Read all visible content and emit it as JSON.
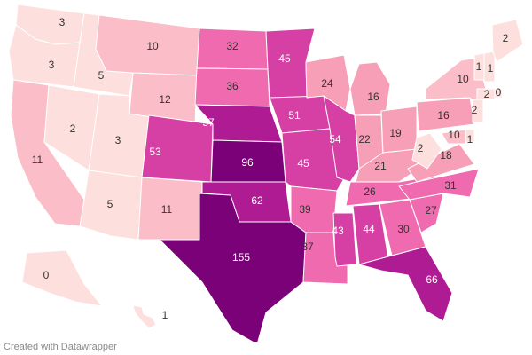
{
  "credit": "Created with Datawrapper",
  "color_scale": [
    "#fde0dd",
    "#fbbdc7",
    "#f79fb7",
    "#ef6aae",
    "#d63fa3",
    "#ae1b93",
    "#7a0177"
  ],
  "chart_data": {
    "type": "choropleth",
    "region": "United States",
    "values": {
      "WA": 3,
      "OR": 3,
      "CA": 11,
      "ID": 5,
      "NV": 2,
      "UT": 3,
      "AZ": 5,
      "MT": 10,
      "WY": 12,
      "CO": 53,
      "NM": 11,
      "ND": 32,
      "SD": 36,
      "NE": 57,
      "KS": 96,
      "OK": 62,
      "TX": 155,
      "MN": 45,
      "IA": 51,
      "MO": 45,
      "AR": 39,
      "LA": 37,
      "WI": 24,
      "IL": 54,
      "MI": 16,
      "IN": 22,
      "OH": 19,
      "KY": 21,
      "TN": 26,
      "MS": 43,
      "AL": 44,
      "GA": 30,
      "FL": 66,
      "SC": 27,
      "NC": 31,
      "VA": 18,
      "WV": 2,
      "PA": 16,
      "NY": 10,
      "MD": 10,
      "DE": 1,
      "NJ": 2,
      "CT": 2,
      "RI": 0,
      "VT": 1,
      "NH": 1,
      "ME": 2,
      "AK": 0,
      "HI": 1
    }
  }
}
